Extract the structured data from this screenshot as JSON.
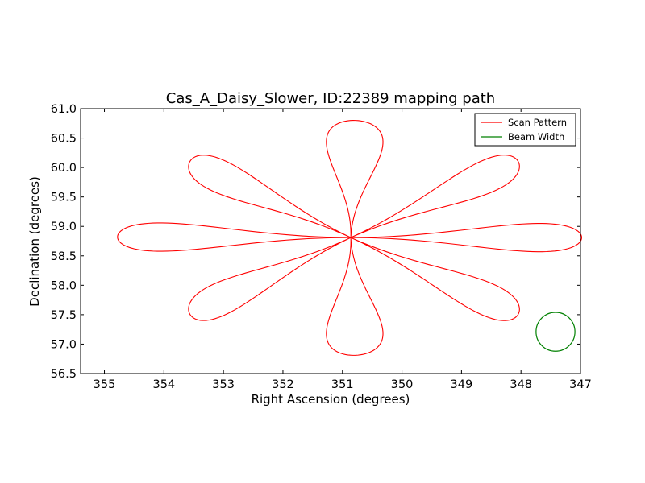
{
  "chart_data": {
    "type": "line",
    "title": "Cas_A_Daisy_Slower, ID:22389 mapping path",
    "xlabel": "Right Ascension (degrees)",
    "ylabel": "Declination (degrees)",
    "xlim": [
      355.4,
      347.0
    ],
    "ylim": [
      56.5,
      61.0
    ],
    "x_inverted": true,
    "xticks": [
      355,
      354,
      353,
      352,
      351,
      350,
      349,
      348,
      347
    ],
    "xtick_labels": [
      "355",
      "354",
      "353",
      "352",
      "351",
      "350",
      "349",
      "348",
      "347"
    ],
    "yticks": [
      56.5,
      57.0,
      57.5,
      58.0,
      58.5,
      59.0,
      59.5,
      60.0,
      60.5,
      61.0
    ],
    "ytick_labels": [
      "56.5",
      "57.0",
      "57.5",
      "58.0",
      "58.5",
      "59.0",
      "59.5",
      "60.0",
      "60.5",
      "61.0"
    ],
    "grid": false,
    "legend_position": "top-right",
    "series": [
      {
        "name": "Scan Pattern",
        "color": "#ff0000",
        "pattern": "daisy",
        "center_ra": 350.86,
        "center_dec": 58.81,
        "petals": [
          {
            "tip_ra": 354.78,
            "tip_dec": 58.82,
            "half_width_deg": 0.26
          },
          {
            "tip_ra": 346.98,
            "tip_dec": 58.81,
            "half_width_deg": 0.26
          },
          {
            "tip_ra": 350.78,
            "tip_dec": 60.8,
            "half_width_deg": 0.52
          },
          {
            "tip_ra": 350.78,
            "tip_dec": 56.81,
            "half_width_deg": 0.52
          },
          {
            "tip_ra": 353.57,
            "tip_dec": 60.09,
            "half_width_deg": 0.3
          },
          {
            "tip_ra": 348.04,
            "tip_dec": 60.09,
            "half_width_deg": 0.3
          },
          {
            "tip_ra": 353.57,
            "tip_dec": 57.52,
            "half_width_deg": 0.3
          },
          {
            "tip_ra": 348.04,
            "tip_dec": 57.52,
            "half_width_deg": 0.3
          }
        ]
      },
      {
        "name": "Beam Width",
        "color": "#008000",
        "shape": "circle",
        "center_ra": 347.42,
        "center_dec": 57.21,
        "radius_dec_deg": 0.33
      }
    ]
  }
}
